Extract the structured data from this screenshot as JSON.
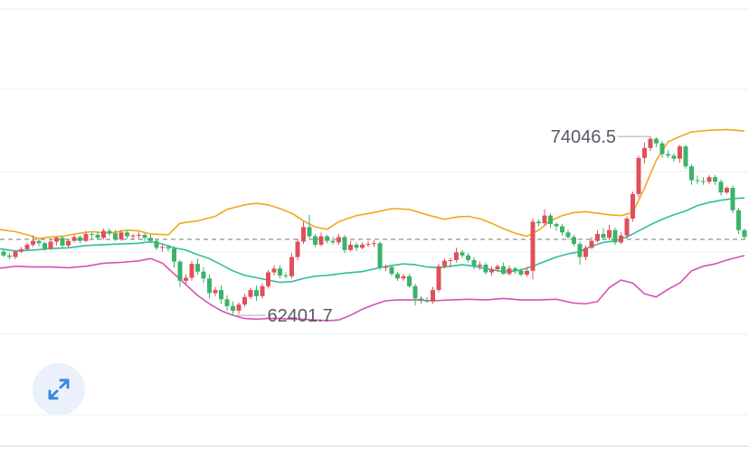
{
  "chart_data": {
    "type": "candlestick",
    "annotations": {
      "high_label": "74046.5",
      "low_label": "62401.7"
    },
    "reference_price": 67350,
    "colors": {
      "up": "#e0505a",
      "down": "#3bb36b",
      "upper_band": "#f0a81d",
      "middle_band": "#2fbf9a",
      "lower_band": "#d94fb8",
      "reference_line": "#777777",
      "grid": "#e9ecef"
    },
    "grid": true,
    "candles": [
      [
        66550,
        66300,
        66750,
        66200
      ],
      [
        66300,
        66200,
        66450,
        66050
      ],
      [
        66200,
        66550,
        66650,
        66050
      ],
      [
        66550,
        66700,
        66850,
        66450
      ],
      [
        66700,
        67000,
        67150,
        66650
      ],
      [
        67000,
        67250,
        67600,
        66850
      ],
      [
        67250,
        67100,
        67350,
        66900
      ],
      [
        67100,
        66750,
        67200,
        66600
      ],
      [
        66750,
        67200,
        67400,
        66650
      ],
      [
        67200,
        67450,
        67500,
        66950
      ],
      [
        67450,
        66950,
        67550,
        66750
      ],
      [
        66950,
        67250,
        67350,
        66850
      ],
      [
        67250,
        67500,
        67650,
        67150
      ],
      [
        67500,
        67250,
        67600,
        67100
      ],
      [
        67250,
        67700,
        67900,
        67150
      ],
      [
        67700,
        67650,
        67800,
        67400
      ],
      [
        67650,
        67450,
        67850,
        67300
      ],
      [
        67450,
        67900,
        68050,
        67350
      ],
      [
        67900,
        67750,
        68050,
        67550
      ],
      [
        67750,
        67350,
        67950,
        67250
      ],
      [
        67350,
        67800,
        67950,
        67250
      ],
      [
        67800,
        67550,
        67900,
        67400
      ],
      [
        67550,
        67600,
        67700,
        67350
      ],
      [
        67600,
        67650,
        67800,
        67400
      ],
      [
        67650,
        67450,
        67750,
        67250
      ],
      [
        67450,
        67250,
        67650,
        67100
      ],
      [
        67250,
        66800,
        67350,
        66650
      ],
      [
        66800,
        66850,
        67000,
        66550
      ],
      [
        66850,
        66750,
        67000,
        66550
      ],
      [
        66750,
        65900,
        66900,
        65500
      ],
      [
        65900,
        64650,
        66000,
        64250
      ],
      [
        64650,
        64850,
        65050,
        64400
      ],
      [
        64850,
        65750,
        65950,
        64650
      ],
      [
        65750,
        65250,
        66100,
        65050
      ],
      [
        65250,
        64800,
        65550,
        64500
      ],
      [
        64800,
        63850,
        65050,
        63500
      ],
      [
        63850,
        64050,
        64250,
        63650
      ],
      [
        64050,
        63450,
        64350,
        63150
      ],
      [
        63450,
        63000,
        63700,
        62700
      ],
      [
        63000,
        62700,
        63300,
        62400
      ],
      [
        62700,
        63100,
        63250,
        62500
      ],
      [
        63100,
        63600,
        63800,
        62950
      ],
      [
        63600,
        64050,
        64200,
        63450
      ],
      [
        64050,
        63650,
        64350,
        63350
      ],
      [
        63650,
        64300,
        64500,
        63500
      ],
      [
        64300,
        65200,
        65350,
        64150
      ],
      [
        65200,
        65450,
        65650,
        65000
      ],
      [
        65450,
        65000,
        65650,
        64800
      ],
      [
        65000,
        64950,
        65200,
        64800
      ],
      [
        64950,
        66200,
        66450,
        64800
      ],
      [
        66200,
        67200,
        67400,
        66000
      ],
      [
        67200,
        68150,
        68500,
        67050
      ],
      [
        68150,
        67550,
        68950,
        67350
      ],
      [
        67550,
        67000,
        67700,
        66850
      ],
      [
        67000,
        67550,
        67800,
        66900
      ],
      [
        67550,
        67250,
        67650,
        67100
      ],
      [
        67250,
        67150,
        67500,
        67000
      ],
      [
        67150,
        67500,
        67700,
        67000
      ],
      [
        67500,
        66650,
        67650,
        66450
      ],
      [
        66650,
        67000,
        67250,
        66550
      ],
      [
        67000,
        66800,
        67150,
        66600
      ],
      [
        66800,
        67000,
        67150,
        66700
      ],
      [
        67000,
        67050,
        67250,
        66850
      ],
      [
        67050,
        67100,
        67300,
        66850
      ],
      [
        67100,
        65500,
        67200,
        65350
      ],
      [
        65500,
        65550,
        65700,
        65300
      ],
      [
        65550,
        65100,
        65700,
        64950
      ],
      [
        65100,
        64800,
        65250,
        64650
      ],
      [
        64800,
        64950,
        65100,
        64650
      ],
      [
        64950,
        64300,
        65100,
        64200
      ],
      [
        64300,
        63500,
        64450,
        63050
      ],
      [
        63500,
        63400,
        63650,
        63150
      ],
      [
        63400,
        63300,
        63600,
        63200
      ],
      [
        63300,
        64050,
        64250,
        63150
      ],
      [
        64050,
        65600,
        65750,
        63900
      ],
      [
        65600,
        65950,
        66100,
        65450
      ],
      [
        65950,
        66000,
        66150,
        65550
      ],
      [
        66000,
        66500,
        66800,
        65850
      ],
      [
        66500,
        66300,
        66650,
        66150
      ],
      [
        66300,
        66000,
        66450,
        65850
      ],
      [
        66000,
        65600,
        66200,
        65400
      ],
      [
        65600,
        65700,
        65900,
        65350
      ],
      [
        65700,
        65200,
        65850,
        65050
      ],
      [
        65200,
        65400,
        65600,
        64950
      ],
      [
        65400,
        65600,
        65700,
        65250
      ],
      [
        65600,
        65100,
        65850,
        65050
      ],
      [
        65100,
        65450,
        65650,
        65000
      ],
      [
        65450,
        65300,
        65550,
        65100
      ],
      [
        65300,
        65050,
        65450,
        64950
      ],
      [
        65050,
        65300,
        65550,
        64900
      ],
      [
        65300,
        68500,
        68700,
        64750
      ],
      [
        68500,
        68400,
        68650,
        68200
      ],
      [
        68400,
        68900,
        69300,
        68250
      ],
      [
        68900,
        68350,
        69050,
        68100
      ],
      [
        68350,
        68200,
        68450,
        67900
      ],
      [
        68200,
        67800,
        68350,
        67600
      ],
      [
        67800,
        67500,
        67950,
        67350
      ],
      [
        67500,
        67050,
        67650,
        66900
      ],
      [
        67050,
        66200,
        67200,
        65700
      ],
      [
        66200,
        66800,
        66950,
        66000
      ],
      [
        66800,
        67250,
        67500,
        66700
      ],
      [
        67250,
        67700,
        67950,
        67150
      ],
      [
        67700,
        67450,
        68100,
        67300
      ],
      [
        67450,
        67950,
        68300,
        67300
      ],
      [
        67950,
        67150,
        68100,
        67000
      ],
      [
        67150,
        67600,
        67800,
        67050
      ],
      [
        67600,
        68700,
        68850,
        67400
      ],
      [
        68700,
        70300,
        70450,
        68500
      ],
      [
        70300,
        72650,
        72800,
        70100
      ],
      [
        72650,
        73300,
        73650,
        72300
      ],
      [
        73300,
        73900,
        74046.5,
        73100
      ],
      [
        73900,
        73600,
        74000,
        73350
      ],
      [
        73600,
        72900,
        73750,
        72650
      ],
      [
        72900,
        72800,
        73150,
        72650
      ],
      [
        72800,
        72600,
        72950,
        72400
      ],
      [
        72600,
        73400,
        73500,
        72350
      ],
      [
        73400,
        72100,
        73500,
        71950
      ],
      [
        72100,
        71200,
        72250,
        70900
      ],
      [
        71200,
        71150,
        71500,
        70950
      ],
      [
        71150,
        71100,
        71400,
        70900
      ],
      [
        71100,
        71400,
        71550,
        70950
      ],
      [
        71400,
        71100,
        71550,
        70900
      ],
      [
        71100,
        70400,
        71250,
        70200
      ],
      [
        70400,
        70700,
        70800,
        70300
      ],
      [
        70700,
        69250,
        70850,
        69050
      ],
      [
        69250,
        67950,
        69400,
        67700
      ],
      [
        67950,
        67500,
        68050,
        67400
      ]
    ],
    "upper_band": [
      [
        -1,
        68000
      ],
      [
        2,
        67850
      ],
      [
        4,
        67650
      ],
      [
        6,
        67400
      ],
      [
        8,
        67500
      ],
      [
        10,
        67550
      ],
      [
        12,
        67700
      ],
      [
        15,
        67850
      ],
      [
        18,
        67750
      ],
      [
        21,
        67950
      ],
      [
        23,
        67900
      ],
      [
        25,
        67700
      ],
      [
        28,
        67650
      ],
      [
        30,
        68400
      ],
      [
        33,
        68550
      ],
      [
        36,
        68850
      ],
      [
        38,
        69300
      ],
      [
        41,
        69600
      ],
      [
        43,
        69700
      ],
      [
        45,
        69600
      ],
      [
        47,
        69350
      ],
      [
        49,
        69050
      ],
      [
        51,
        68550
      ],
      [
        53,
        68150
      ],
      [
        55,
        68000
      ],
      [
        57,
        68500
      ],
      [
        60,
        68900
      ],
      [
        63,
        69100
      ],
      [
        66,
        69350
      ],
      [
        69,
        69300
      ],
      [
        72,
        68950
      ],
      [
        75,
        68650
      ],
      [
        77,
        68800
      ],
      [
        79,
        68850
      ],
      [
        81,
        68700
      ],
      [
        83,
        68400
      ],
      [
        85,
        68050
      ],
      [
        87,
        67750
      ],
      [
        89,
        67550
      ],
      [
        91,
        67950
      ],
      [
        93,
        68550
      ],
      [
        95,
        68900
      ],
      [
        97,
        69100
      ],
      [
        99,
        69150
      ],
      [
        101,
        69050
      ],
      [
        103,
        68950
      ],
      [
        105,
        68900
      ],
      [
        107,
        69100
      ],
      [
        109,
        70700
      ],
      [
        111,
        72500
      ],
      [
        113,
        73700
      ],
      [
        115,
        74050
      ],
      [
        117,
        74350
      ],
      [
        120,
        74450
      ],
      [
        123,
        74500
      ],
      [
        126,
        74400
      ]
    ],
    "middle_band": [
      [
        -1,
        66750
      ],
      [
        2,
        66600
      ],
      [
        5,
        66650
      ],
      [
        8,
        66750
      ],
      [
        11,
        66800
      ],
      [
        14,
        66950
      ],
      [
        17,
        67000
      ],
      [
        20,
        67050
      ],
      [
        23,
        67100
      ],
      [
        25,
        67200
      ],
      [
        27,
        67050
      ],
      [
        29,
        66800
      ],
      [
        31,
        66650
      ],
      [
        33,
        66350
      ],
      [
        35,
        66100
      ],
      [
        37,
        65700
      ],
      [
        39,
        65300
      ],
      [
        41,
        65000
      ],
      [
        43,
        64850
      ],
      [
        45,
        64700
      ],
      [
        47,
        64550
      ],
      [
        49,
        64600
      ],
      [
        51,
        64800
      ],
      [
        53,
        64950
      ],
      [
        55,
        65000
      ],
      [
        58,
        65150
      ],
      [
        61,
        65250
      ],
      [
        64,
        65500
      ],
      [
        66,
        65650
      ],
      [
        68,
        65750
      ],
      [
        70,
        65700
      ],
      [
        72,
        65550
      ],
      [
        74,
        65500
      ],
      [
        76,
        65600
      ],
      [
        78,
        65700
      ],
      [
        80,
        65600
      ],
      [
        82,
        65450
      ],
      [
        84,
        65300
      ],
      [
        86,
        65250
      ],
      [
        88,
        65350
      ],
      [
        90,
        65600
      ],
      [
        92,
        65900
      ],
      [
        94,
        66200
      ],
      [
        96,
        66400
      ],
      [
        98,
        66550
      ],
      [
        100,
        66900
      ],
      [
        102,
        67150
      ],
      [
        104,
        67250
      ],
      [
        106,
        67500
      ],
      [
        108,
        67900
      ],
      [
        110,
        68300
      ],
      [
        112,
        68650
      ],
      [
        114,
        68950
      ],
      [
        116,
        69200
      ],
      [
        118,
        69550
      ],
      [
        120,
        69750
      ],
      [
        122,
        69900
      ],
      [
        124,
        70000
      ],
      [
        126,
        70050
      ]
    ],
    "lower_band": [
      [
        -1,
        65450
      ],
      [
        2,
        65600
      ],
      [
        5,
        65550
      ],
      [
        8,
        65550
      ],
      [
        11,
        65500
      ],
      [
        14,
        65600
      ],
      [
        17,
        65800
      ],
      [
        20,
        65850
      ],
      [
        23,
        65950
      ],
      [
        25,
        66100
      ],
      [
        27,
        65800
      ],
      [
        29,
        65100
      ],
      [
        31,
        64400
      ],
      [
        33,
        63700
      ],
      [
        35,
        63150
      ],
      [
        37,
        62700
      ],
      [
        39,
        62400
      ],
      [
        41,
        62200
      ],
      [
        43,
        62150
      ],
      [
        45,
        62200
      ],
      [
        47,
        62200
      ],
      [
        49,
        62150
      ],
      [
        51,
        62150
      ],
      [
        53,
        62100
      ],
      [
        55,
        62050
      ],
      [
        57,
        62100
      ],
      [
        59,
        62400
      ],
      [
        61,
        62800
      ],
      [
        63,
        63100
      ],
      [
        65,
        63350
      ],
      [
        67,
        63400
      ],
      [
        70,
        63400
      ],
      [
        73,
        63350
      ],
      [
        76,
        63400
      ],
      [
        79,
        63450
      ],
      [
        82,
        63400
      ],
      [
        85,
        63500
      ],
      [
        88,
        63400
      ],
      [
        91,
        63400
      ],
      [
        94,
        63450
      ],
      [
        97,
        63200
      ],
      [
        99,
        63150
      ],
      [
        101,
        63300
      ],
      [
        103,
        64200
      ],
      [
        105,
        64700
      ],
      [
        107,
        64500
      ],
      [
        109,
        63800
      ],
      [
        111,
        63600
      ],
      [
        113,
        64100
      ],
      [
        115,
        64500
      ],
      [
        117,
        65300
      ],
      [
        119,
        65600
      ],
      [
        121,
        65750
      ],
      [
        123,
        66000
      ],
      [
        125,
        66200
      ],
      [
        126,
        66300
      ]
    ]
  },
  "controls": {
    "expand_icon": "expand-arrows-icon"
  }
}
